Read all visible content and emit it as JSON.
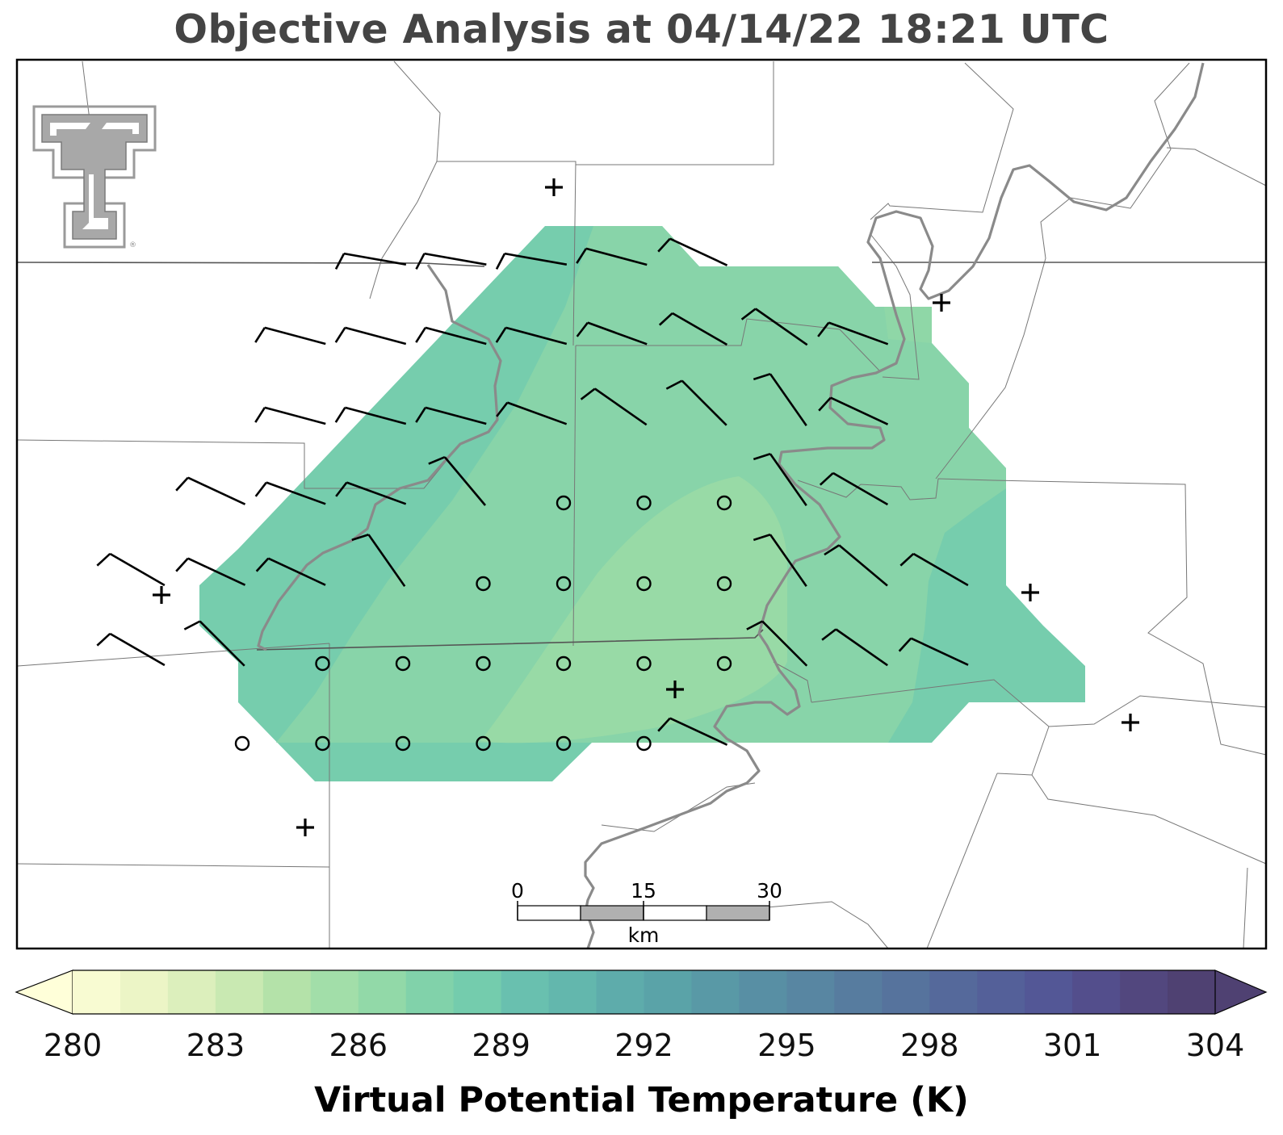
{
  "title": "Objective Analysis at 04/14/22 18:21 UTC",
  "colorbar": {
    "label": "Virtual Potential Temperature (K)",
    "min": 280,
    "max": 306,
    "step": 1,
    "ticks": [
      280,
      283,
      286,
      289,
      292,
      295,
      298,
      301,
      304
    ],
    "colors": [
      "#f8fbd2",
      "#ecf5c6",
      "#dcefbc",
      "#c9e9b2",
      "#b4e2a9",
      "#a2dea9",
      "#92d9a8",
      "#81d2aa",
      "#74ccad",
      "#69c0af",
      "#63b7ad",
      "#5eacab",
      "#5aa3a8",
      "#5999a6",
      "#588fa4",
      "#5886a2",
      "#577c9f",
      "#56739d",
      "#55699b",
      "#546099",
      "#535796",
      "#534e8c",
      "#52477e",
      "#4f4172"
    ],
    "under_color": "#ffffd9",
    "over_color": "#4f4172"
  },
  "logo": {
    "name": "Texas Tech Double T",
    "mark": "®"
  },
  "scale_bar": {
    "labels": [
      "0",
      "15",
      "30"
    ],
    "unit": "km"
  },
  "wind_barbs": [
    {
      "dir": 280,
      "kt": 10
    },
    {
      "dir": 280,
      "kt": 10
    },
    {
      "dir": 280,
      "kt": 10
    },
    {
      "dir": 285,
      "kt": 10
    },
    {
      "dir": 295,
      "kt": 10
    },
    {
      "dir": 285,
      "kt": 10
    },
    {
      "dir": 285,
      "kt": 10
    },
    {
      "dir": 285,
      "kt": 10
    },
    {
      "dir": 285,
      "kt": 10
    },
    {
      "dir": 290,
      "kt": 10
    },
    {
      "dir": 300,
      "kt": 10
    },
    {
      "dir": 305,
      "kt": 10
    },
    {
      "dir": 290,
      "kt": 10
    },
    {
      "dir": 285,
      "kt": 10
    },
    {
      "dir": 285,
      "kt": 10
    },
    {
      "dir": 285,
      "kt": 10
    },
    {
      "dir": 290,
      "kt": 10
    },
    {
      "dir": 305,
      "kt": 10
    },
    {
      "dir": 315,
      "kt": 10
    },
    {
      "dir": 325,
      "kt": 10
    },
    {
      "dir": 295,
      "kt": 10
    },
    {
      "dir": 295,
      "kt": 10
    },
    {
      "dir": 290,
      "kt": 10
    },
    {
      "dir": 290,
      "kt": 10
    },
    {
      "dir": 320,
      "kt": 10
    },
    {
      "dir": 325,
      "kt": 10
    },
    {
      "dir": 300,
      "kt": 10
    },
    {
      "dir": 300,
      "kt": 10
    },
    {
      "dir": 295,
      "kt": 10
    },
    {
      "dir": 295,
      "kt": 10
    },
    {
      "dir": 325,
      "kt": 10
    },
    {
      "dir": 325,
      "kt": 10
    },
    {
      "dir": 310,
      "kt": 10
    },
    {
      "dir": 300,
      "kt": 10
    },
    {
      "dir": 300,
      "kt": 10
    },
    {
      "dir": 315,
      "kt": 10
    },
    {
      "dir": 315,
      "kt": 10
    },
    {
      "dir": 305,
      "kt": 10
    },
    {
      "dir": 295,
      "kt": 10
    },
    {
      "dir": 295,
      "kt": 10
    }
  ],
  "calm_count": 19,
  "station_count": 7
}
